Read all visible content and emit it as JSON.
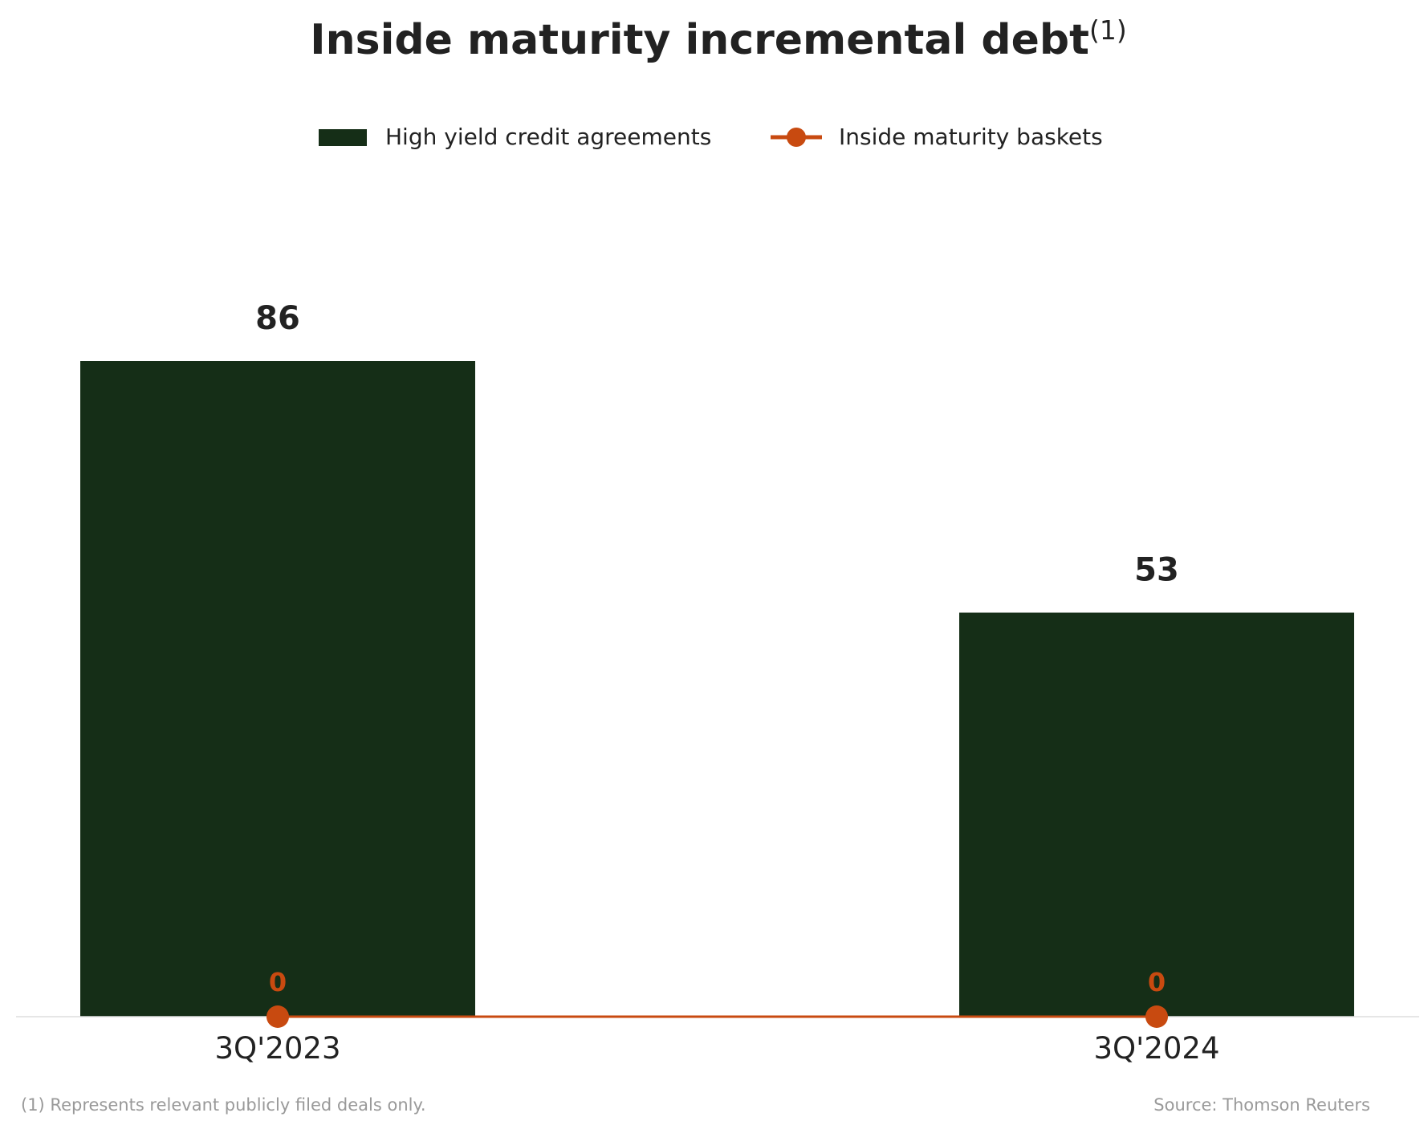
{
  "title": {
    "text": "Inside maturity incremental debt",
    "superscript": "(1)"
  },
  "legend": {
    "items": [
      {
        "label": "High yield credit agreements",
        "kind": "bar"
      },
      {
        "label": "Inside maturity baskets",
        "kind": "line"
      }
    ]
  },
  "colors": {
    "bar": "#152e17",
    "line": "#c84a10",
    "axis": "#dddddd",
    "text": "#222222",
    "footnote": "#999999"
  },
  "footnotes": {
    "left": "(1) Represents relevant publicly filed deals only.",
    "right": "Source: Thomson Reuters"
  },
  "chart_data": {
    "type": "bar",
    "title": "Inside maturity incremental debt",
    "categories": [
      "3Q'2023",
      "3Q'2024"
    ],
    "series": [
      {
        "name": "High yield credit agreements",
        "type": "bar",
        "values": [
          86,
          53
        ]
      },
      {
        "name": "Inside maturity baskets",
        "type": "line",
        "values": [
          0,
          0
        ]
      }
    ],
    "xlabel": "",
    "ylabel": "",
    "ylim": [
      0,
      100
    ],
    "grid": false,
    "legend_position": "top-center"
  }
}
